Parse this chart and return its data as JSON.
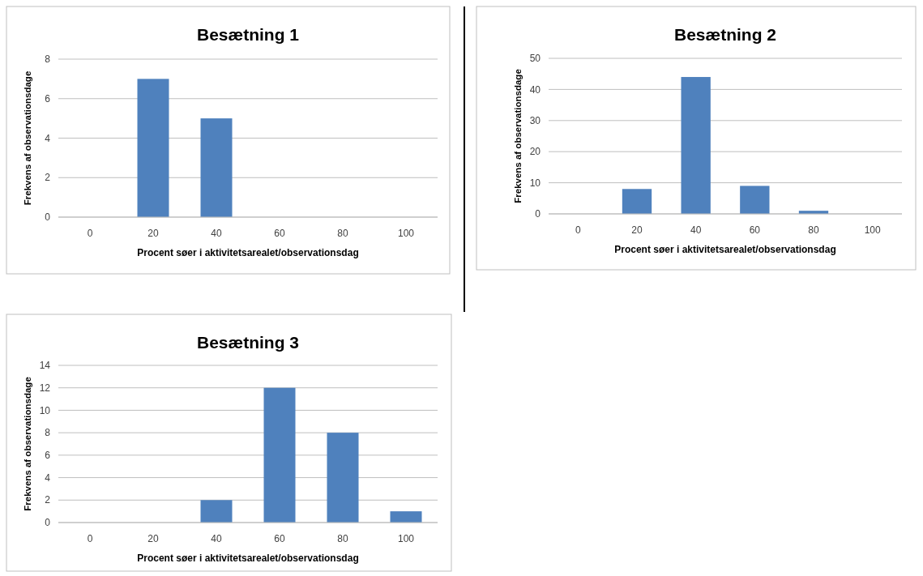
{
  "chart_data": [
    {
      "type": "bar",
      "title": "Besætning 1",
      "xlabel": "Procent søer i aktivitetsarealet/observationsdag",
      "ylabel": "Frekvens af observationsdage",
      "categories": [
        "0",
        "20",
        "40",
        "60",
        "80",
        "100"
      ],
      "values": [
        0,
        7,
        5,
        0,
        0,
        0
      ],
      "color": "#4f81bd",
      "ylim": [
        0,
        8
      ],
      "yticks": [
        0,
        2,
        4,
        6,
        8
      ],
      "grid": "y"
    },
    {
      "type": "bar",
      "title": "Besætning 2",
      "xlabel": "Procent søer i aktivitetsarealet/observationsdag",
      "ylabel": "Frekvens af observationsdage",
      "categories": [
        "0",
        "20",
        "40",
        "60",
        "80",
        "100"
      ],
      "values": [
        0,
        8,
        44,
        9,
        1,
        0
      ],
      "color": "#4f81bd",
      "ylim": [
        0,
        50
      ],
      "yticks": [
        0,
        10,
        20,
        30,
        40,
        50
      ],
      "grid": "y"
    },
    {
      "type": "bar",
      "title": "Besætning 3",
      "xlabel": "Procent søer i aktivitetsarealet/observationsdag",
      "ylabel": "Frekvens af observationsdage",
      "categories": [
        "0",
        "20",
        "40",
        "60",
        "80",
        "100"
      ],
      "values": [
        0,
        0,
        2,
        12,
        8,
        1
      ],
      "color": "#4f81bd",
      "ylim": [
        0,
        14
      ],
      "yticks": [
        0,
        2,
        4,
        6,
        8,
        10,
        12,
        14
      ],
      "grid": "y"
    }
  ]
}
